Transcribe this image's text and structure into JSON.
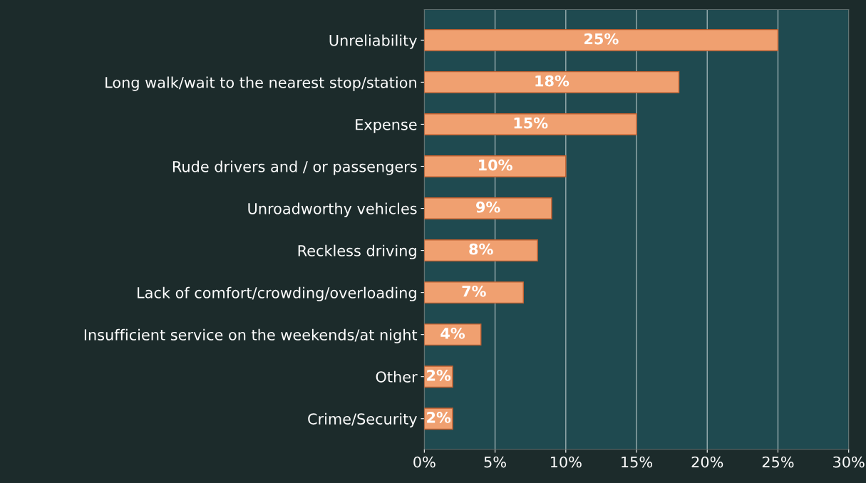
{
  "chart_data": {
    "type": "bar",
    "orientation": "horizontal",
    "categories": [
      "Unreliability",
      "Long walk/wait to the nearest stop/station",
      "Expense",
      "Rude drivers and / or passengers",
      "Unroadworthy vehicles",
      "Reckless driving",
      "Lack of comfort/crowding/overloading",
      "Insufficient service on the weekends/at night",
      "Other",
      "Crime/Security"
    ],
    "values": [
      25,
      18,
      15,
      10,
      9,
      8,
      7,
      4,
      2,
      2
    ],
    "value_labels": [
      "25%",
      "18%",
      "15%",
      "10%",
      "9%",
      "8%",
      "7%",
      "4%",
      "2%",
      "2%"
    ],
    "color": "#f0a070",
    "xlim": [
      0,
      30
    ],
    "xticks": [
      {
        "value": 0,
        "label": "0%"
      },
      {
        "value": 5,
        "label": "5%"
      },
      {
        "value": 10,
        "label": "10%"
      },
      {
        "value": 15,
        "label": "15%"
      },
      {
        "value": 20,
        "label": "20%"
      },
      {
        "value": 25,
        "label": "25%"
      },
      {
        "value": 30,
        "label": "30%"
      }
    ],
    "grid": "x",
    "legend": false
  }
}
